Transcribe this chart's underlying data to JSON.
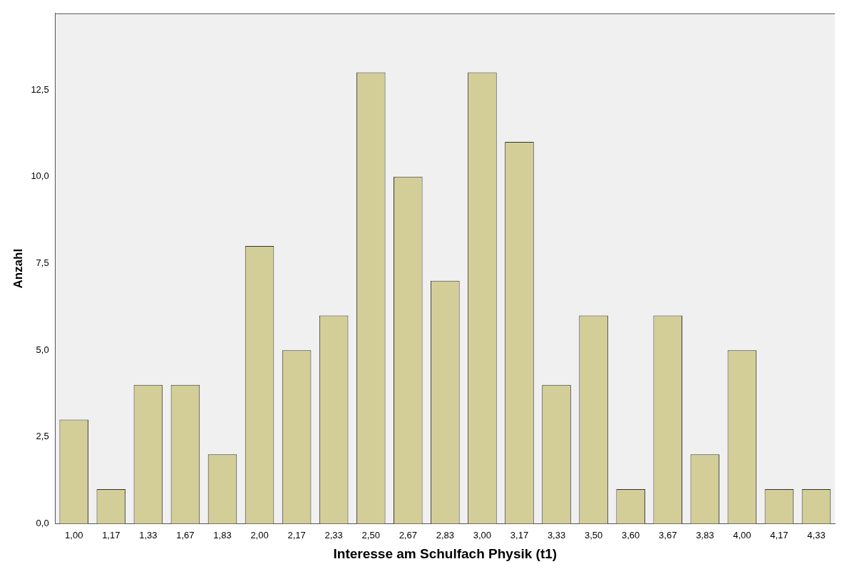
{
  "chart_data": {
    "type": "bar",
    "xlabel": "Interesse am Schulfach Physik (t1)",
    "ylabel": "Anzahl",
    "categories": [
      "1,00",
      "1,17",
      "1,33",
      "1,67",
      "1,83",
      "2,00",
      "2,17",
      "2,33",
      "2,50",
      "2,67",
      "2,83",
      "3,00",
      "3,17",
      "3,33",
      "3,50",
      "3,60",
      "3,67",
      "3,83",
      "4,00",
      "4,17",
      "4,33"
    ],
    "values": [
      3,
      1,
      4,
      4,
      2,
      8,
      5,
      6,
      13,
      10,
      7,
      13,
      11,
      4,
      6,
      1,
      6,
      2,
      5,
      1,
      1
    ],
    "color": "#d3ce98",
    "ylim": [
      0,
      14.7
    ],
    "yticks": [
      {
        "value": 0,
        "label": "0,0"
      },
      {
        "value": 2.5,
        "label": "2,5"
      },
      {
        "value": 5,
        "label": "5,0"
      },
      {
        "value": 7.5,
        "label": "7,5"
      },
      {
        "value": 10,
        "label": "10,0"
      },
      {
        "value": 12.5,
        "label": "12,5"
      }
    ],
    "grid": false,
    "legend": false
  }
}
